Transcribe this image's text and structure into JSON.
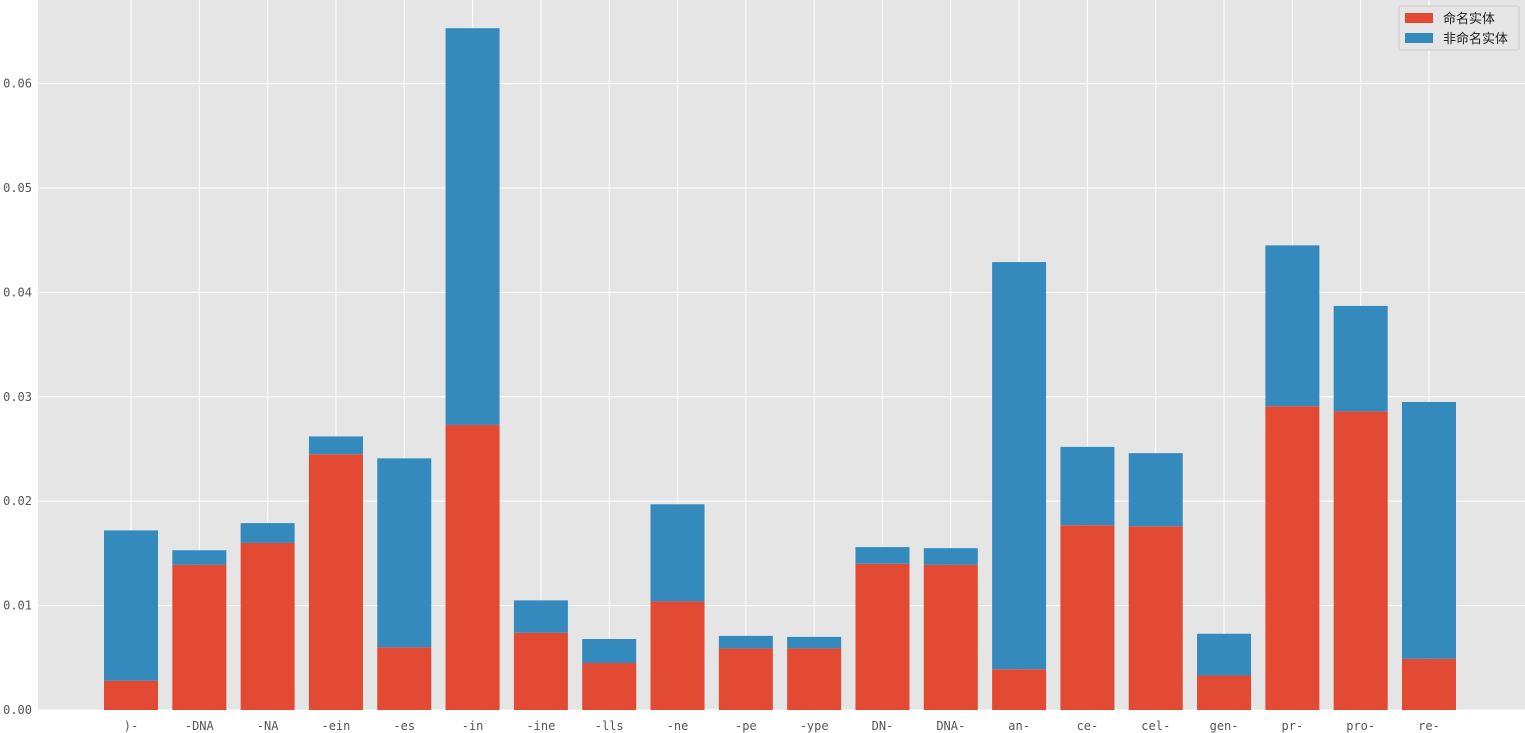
{
  "chart_data": {
    "type": "bar",
    "stacked": true,
    "title": "",
    "xlabel": "",
    "ylabel": "",
    "ylim": [
      0,
      0.068
    ],
    "yticks": [
      0.0,
      0.01,
      0.02,
      0.03,
      0.04,
      0.05,
      0.06
    ],
    "ytick_labels": [
      "0.00",
      "0.01",
      "0.02",
      "0.03",
      "0.04",
      "0.05",
      "0.06"
    ],
    "grid": true,
    "legend_position": "top-right",
    "categories": [
      ")-",
      "-DNA",
      "-NA",
      "-ein",
      "-es",
      "-in",
      "-ine",
      "-lls",
      "-ne",
      "-pe",
      "-ype",
      "DN-",
      "DNA-",
      "an-",
      "ce-",
      "cel-",
      "gen-",
      "pr-",
      "pro-",
      "re-"
    ],
    "series": [
      {
        "name": "命名实体",
        "color": "#E24A33",
        "values": [
          0.0028,
          0.0139,
          0.016,
          0.0245,
          0.006,
          0.0273,
          0.0074,
          0.0045,
          0.0104,
          0.0059,
          0.0059,
          0.014,
          0.0139,
          0.0039,
          0.0177,
          0.0176,
          0.0033,
          0.0291,
          0.0286,
          0.0049
        ]
      },
      {
        "name": "非命名实体",
        "color": "#348ABD",
        "values": [
          0.0144,
          0.0014,
          0.0019,
          0.0017,
          0.0181,
          0.038,
          0.0031,
          0.0023,
          0.0093,
          0.0012,
          0.0011,
          0.0016,
          0.0016,
          0.039,
          0.0075,
          0.007,
          0.004,
          0.0154,
          0.0101,
          0.0246
        ]
      }
    ]
  }
}
